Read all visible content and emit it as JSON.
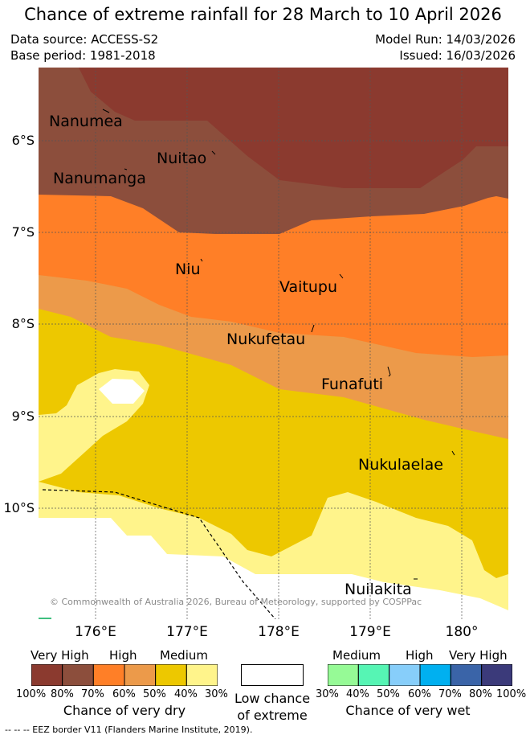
{
  "title": "Chance of extreme rainfall for 28 March to 10 April 2026",
  "meta": {
    "data_source": "Data source: ACCESS-S2",
    "base_period": "Base period: 1981-2018",
    "model_run": "Model Run: 14/03/2026",
    "issued": "Issued: 16/03/2026"
  },
  "map": {
    "islands": [
      {
        "id": "nanumea",
        "label": "Nanumea"
      },
      {
        "id": "nuitao",
        "label": "Nuitao"
      },
      {
        "id": "nanumanga",
        "label": "Nanumanga"
      },
      {
        "id": "niu",
        "label": "Niu"
      },
      {
        "id": "vaitupu",
        "label": "Vaitupu"
      },
      {
        "id": "nukufetau",
        "label": "Nukufetau"
      },
      {
        "id": "funafuti",
        "label": "Funafuti"
      },
      {
        "id": "nukulaelae",
        "label": "Nukulaelae"
      },
      {
        "id": "nuilakita",
        "label": "Nuilakita"
      }
    ],
    "lat_ticks": [
      "6°S",
      "7°S",
      "8°S",
      "9°S",
      "10°S"
    ],
    "lon_ticks": [
      "176°E",
      "177°E",
      "178°E",
      "179°E",
      "180°"
    ],
    "copyright": "© Commonwealth of Australia 2026, Bureau of Meteorology, supported by COSPPac",
    "eez_note": "--  --  -- EEZ border V11 (Flanders Marine Institute, 2019).",
    "grid": true
  },
  "legend": {
    "dry": {
      "title": "Chance of very dry",
      "levels": [
        "Very High",
        "High",
        "Medium"
      ],
      "colors": [
        "#8B3A2F",
        "#8C4E3C",
        "#FF7F27",
        "#EC9A4A",
        "#EDC800",
        "#FFF48B"
      ],
      "percents": [
        "100%",
        "80%",
        "70%",
        "60%",
        "50%",
        "40%",
        "30%"
      ]
    },
    "neutral": {
      "title_line1": "Low chance",
      "title_line2": "of extreme",
      "color": "#ffffff"
    },
    "wet": {
      "title": "Chance of very wet",
      "levels": [
        "Medium",
        "High",
        "Very High"
      ],
      "colors": [
        "#96FA96",
        "#56F5B4",
        "#87CEFA",
        "#00B0F0",
        "#3A64A8",
        "#3B3A7A"
      ],
      "percents": [
        "30%",
        "40%",
        "50%",
        "60%",
        "70%",
        "80%",
        "100%"
      ]
    }
  }
}
